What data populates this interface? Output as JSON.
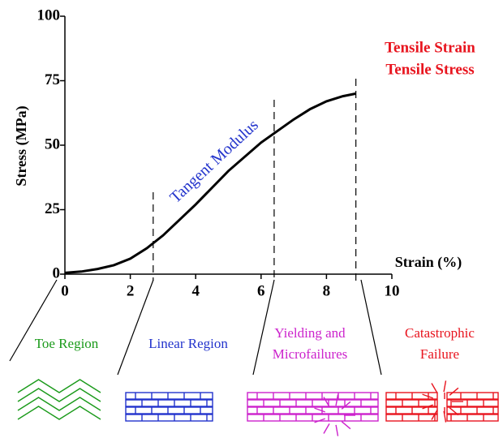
{
  "chart_data": {
    "type": "line",
    "y_label": "Stress (MPa)",
    "x_label": "Strain (%)",
    "x": [
      0,
      0.5,
      1,
      1.5,
      2,
      2.5,
      3,
      4,
      5,
      6,
      7,
      7.5,
      8,
      8.5,
      8.9
    ],
    "values": [
      0.5,
      1,
      2,
      3.5,
      6,
      10,
      15,
      27,
      40,
      51,
      60,
      64,
      67,
      69,
      70
    ],
    "color": "#000000",
    "xlim": [
      0,
      10
    ],
    "xticks": [
      0,
      2,
      4,
      6,
      8,
      10
    ],
    "ylim": [
      0,
      100
    ],
    "yticks": [
      0,
      25,
      50,
      75,
      100
    ],
    "region_boundaries": [
      2.7,
      6.4,
      8.9
    ],
    "annotations": [
      {
        "text": "Tangent Modulus",
        "color": "#2233cc"
      },
      {
        "text": "Tensile Strain",
        "color": "#e8141e"
      },
      {
        "text": "Tensile Stress",
        "color": "#e8141e"
      }
    ],
    "regions": [
      {
        "lines": [
          "Toe Region"
        ],
        "color": "#1a9a1a"
      },
      {
        "lines": [
          "Linear Region"
        ],
        "color": "#2233cc"
      },
      {
        "lines": [
          "Yielding and",
          "Microfailures"
        ],
        "color": "#cc22cc"
      },
      {
        "lines": [
          "Catastrophic",
          "Failure"
        ],
        "color": "#e8141e"
      }
    ]
  }
}
